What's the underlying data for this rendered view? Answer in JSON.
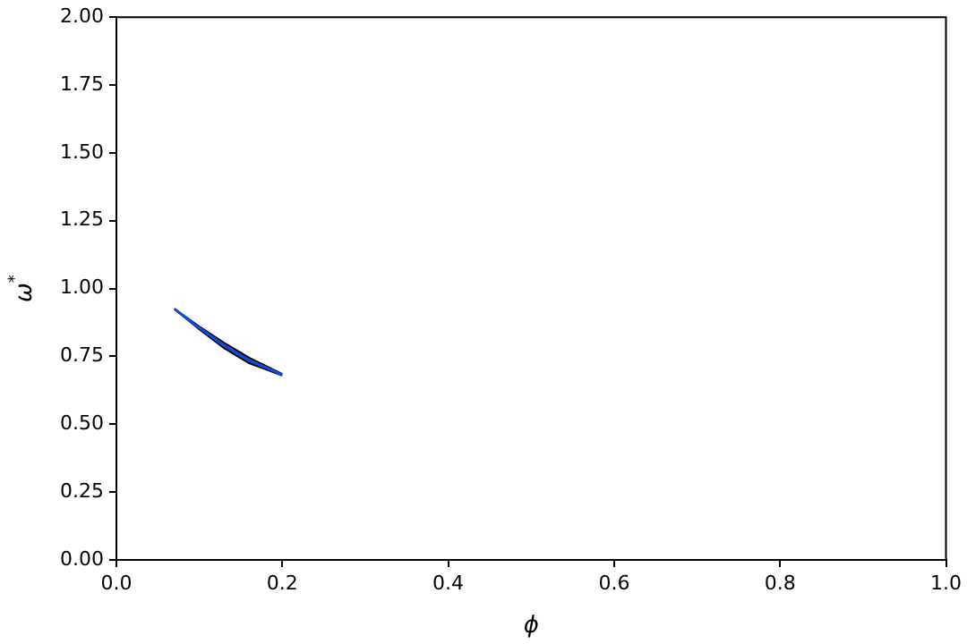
{
  "chart_data": {
    "type": "line",
    "xlabel": "ϕ",
    "ylabel": "ω$^{*}$",
    "x": [
      0.07,
      0.1,
      0.13,
      0.16,
      0.2
    ],
    "series": [
      {
        "color": "#0a50dc",
        "values": [
          0.925,
          0.855,
          0.79,
          0.735,
          0.683
        ],
        "lower": [
          0.925,
          0.85,
          0.78,
          0.725,
          0.68
        ],
        "upper": [
          0.925,
          0.86,
          0.8,
          0.745,
          0.685
        ]
      }
    ],
    "xlim": [
      0,
      1
    ],
    "xticks": [
      {
        "value": 0,
        "label": "0.0"
      },
      {
        "value": 0.2,
        "label": "0.2"
      },
      {
        "value": 0.4,
        "label": "0.4"
      },
      {
        "value": 0.6,
        "label": "0.6"
      },
      {
        "value": 0.8,
        "label": "0.8"
      },
      {
        "value": 1,
        "label": "1.0"
      }
    ],
    "ylim": [
      0,
      2
    ],
    "yticks": [
      {
        "value": 0,
        "label": "0.00"
      },
      {
        "value": 0.25,
        "label": "0.25"
      },
      {
        "value": 0.5,
        "label": "0.50"
      },
      {
        "value": 0.75,
        "label": "0.75"
      },
      {
        "value": 1,
        "label": "1.00"
      },
      {
        "value": 1.25,
        "label": "1.25"
      },
      {
        "value": 1.5,
        "label": "1.50"
      },
      {
        "value": 1.75,
        "label": "1.75"
      },
      {
        "value": 2,
        "label": "2.00"
      }
    ],
    "grid": false,
    "legend": false
  }
}
